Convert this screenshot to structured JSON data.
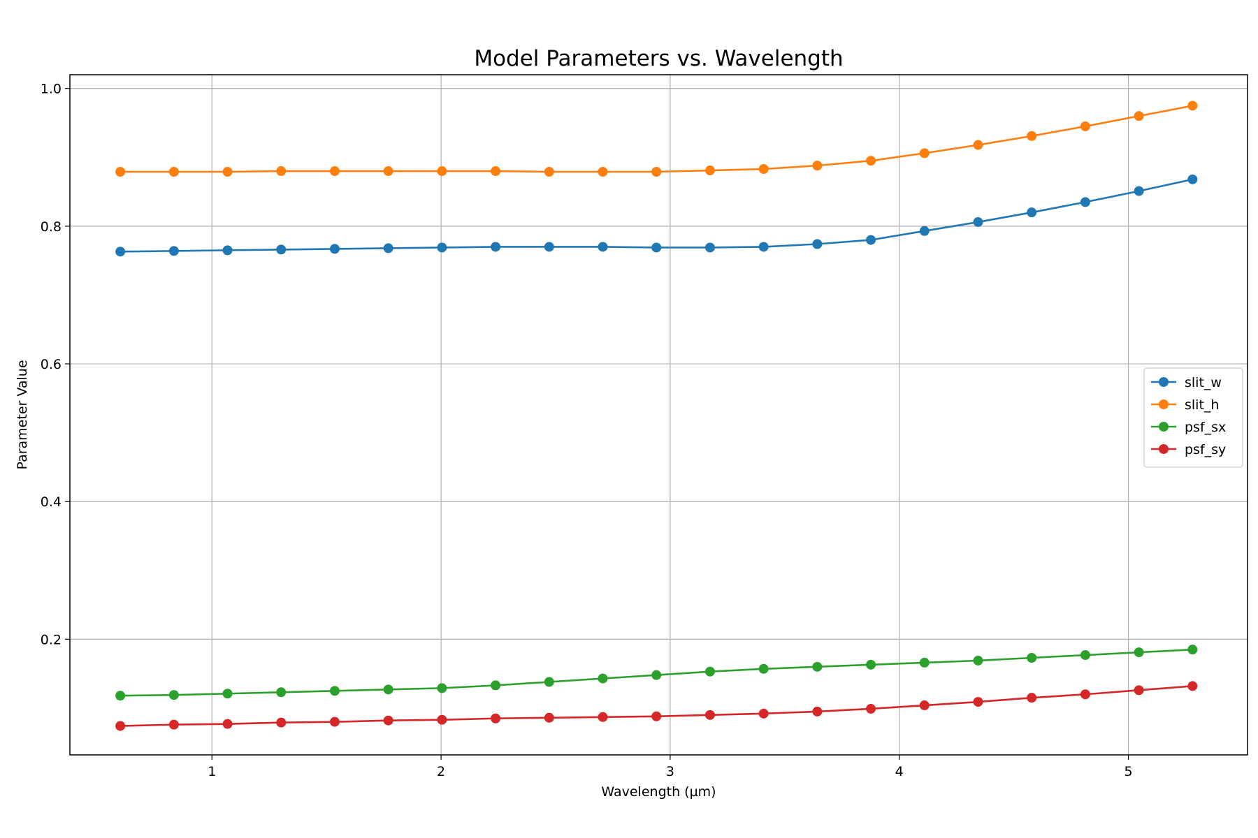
{
  "chart_data": {
    "type": "line",
    "title": "Model Parameters vs. Wavelength",
    "xlabel": "Wavelength (µm)",
    "ylabel": "Parameter Value",
    "xlim": [
      0.38,
      5.52
    ],
    "ylim": [
      0.032,
      1.02
    ],
    "xticks": [
      1,
      2,
      3,
      4,
      5
    ],
    "yticks": [
      0.2,
      0.4,
      0.6,
      0.8,
      1.0
    ],
    "xtick_labels": [
      "1",
      "2",
      "3",
      "4",
      "5"
    ],
    "ytick_labels": [
      "0.2",
      "0.4",
      "0.6",
      "0.8",
      "1.0"
    ],
    "grid": true,
    "legend_position": "center-right",
    "x": [
      0.6,
      0.834,
      1.068,
      1.302,
      1.536,
      1.77,
      2.004,
      2.238,
      2.472,
      2.706,
      2.94,
      3.174,
      3.408,
      3.642,
      3.876,
      4.11,
      4.344,
      4.578,
      4.812,
      5.046,
      5.28
    ],
    "series": [
      {
        "name": "slit_w",
        "color": "#1f77b4",
        "values": [
          0.763,
          0.764,
          0.765,
          0.766,
          0.767,
          0.768,
          0.769,
          0.77,
          0.77,
          0.77,
          0.769,
          0.769,
          0.77,
          0.774,
          0.78,
          0.793,
          0.806,
          0.82,
          0.835,
          0.851,
          0.868
        ]
      },
      {
        "name": "slit_h",
        "color": "#ff7f0e",
        "values": [
          0.879,
          0.879,
          0.879,
          0.88,
          0.88,
          0.88,
          0.88,
          0.88,
          0.879,
          0.879,
          0.879,
          0.881,
          0.883,
          0.888,
          0.895,
          0.906,
          0.918,
          0.931,
          0.945,
          0.96,
          0.975
        ]
      },
      {
        "name": "psf_sx",
        "color": "#2ca02c",
        "values": [
          0.118,
          0.119,
          0.121,
          0.123,
          0.125,
          0.127,
          0.129,
          0.133,
          0.138,
          0.143,
          0.148,
          0.153,
          0.157,
          0.16,
          0.163,
          0.166,
          0.169,
          0.173,
          0.177,
          0.181,
          0.185
        ]
      },
      {
        "name": "psf_sy",
        "color": "#d62728",
        "values": [
          0.074,
          0.076,
          0.077,
          0.079,
          0.08,
          0.082,
          0.083,
          0.085,
          0.086,
          0.087,
          0.088,
          0.09,
          0.092,
          0.095,
          0.099,
          0.104,
          0.109,
          0.115,
          0.12,
          0.126,
          0.132
        ]
      }
    ]
  }
}
